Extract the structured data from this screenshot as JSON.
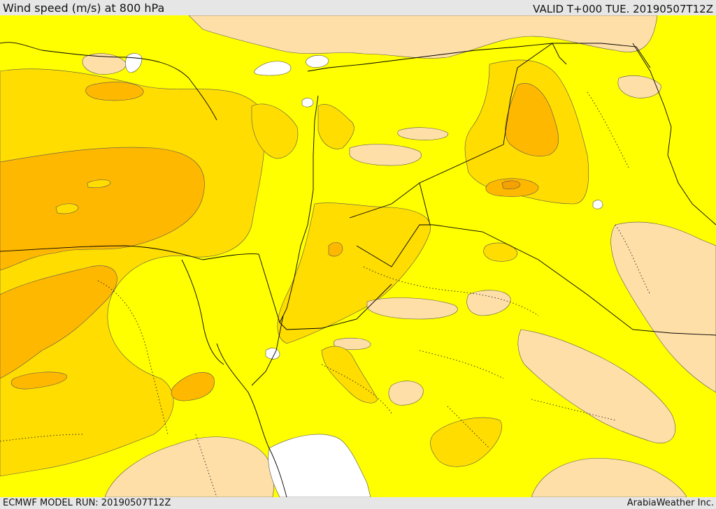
{
  "header": {
    "title": "Wind speed (m/s) at 800 hPa",
    "valid_time": "VALID T+000 TUE. 20190507T12Z"
  },
  "footer": {
    "model_run": "ECMWF MODEL RUN: 20190507T12Z",
    "credit": "ArabiaWeather Inc."
  },
  "map": {
    "variable": "wind speed",
    "level": "800 hPa",
    "colors": {
      "calm": "#ffffff",
      "low": "#ffdfa8",
      "moderate": "#ffff00",
      "fresh": "#ffdd00",
      "strong": "#ffb800",
      "very_strong": "#f5a100",
      "boundary": "#000000"
    }
  }
}
